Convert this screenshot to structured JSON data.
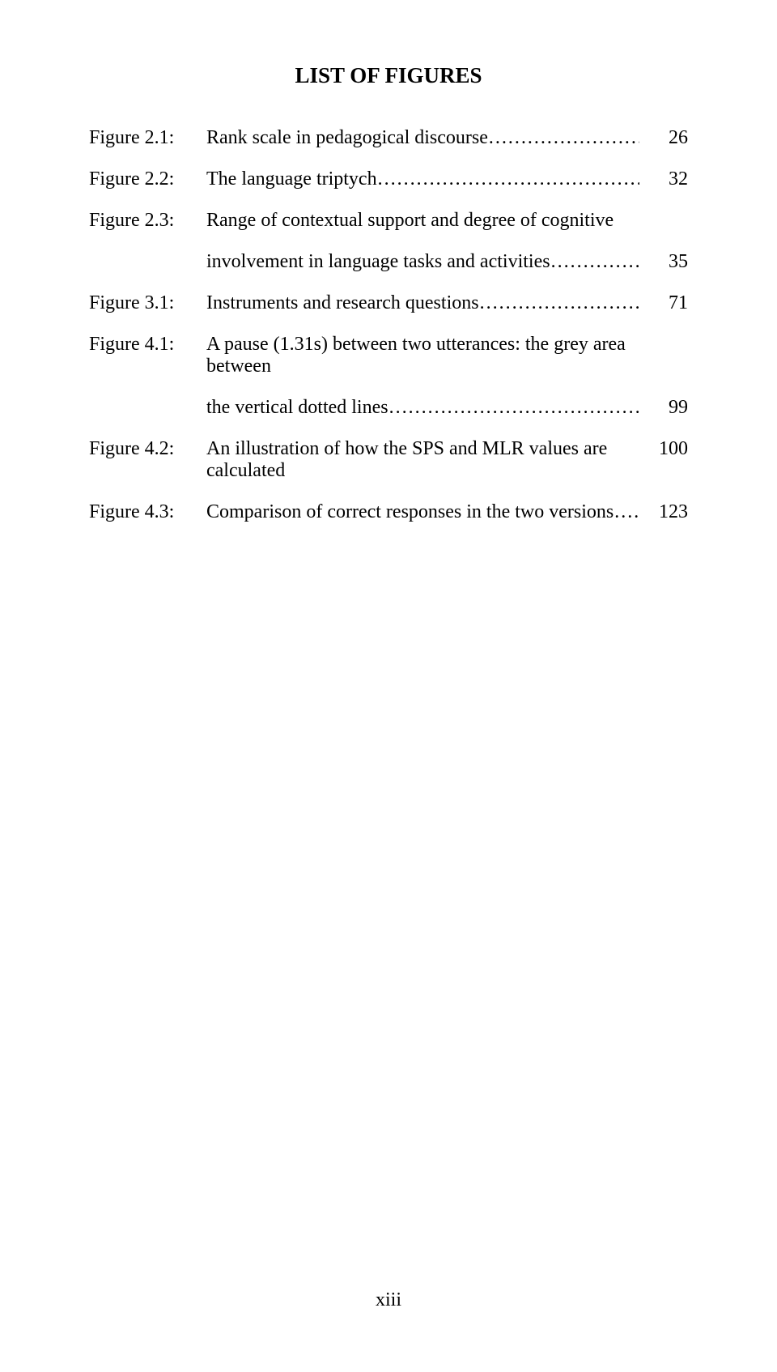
{
  "title": "LIST OF FIGURES",
  "entries": [
    {
      "label": "Figure 2.1:",
      "desc": "Rank scale in pedagogical discourse",
      "page": "26",
      "suffix": ".."
    },
    {
      "label": "Figure 2.2:",
      "desc": "The language triptych",
      "page": "32",
      "suffix": ".."
    },
    {
      "label": "Figure 2.3:",
      "desc": "Range of contextual support and degree of cognitive",
      "page": "",
      "nodots": true
    },
    {
      "label": "",
      "desc": "involvement in language tasks and activities",
      "page": "35",
      "suffix": ".."
    },
    {
      "label": "Figure 3.1:",
      "desc": "Instruments and research questions",
      "page": "71",
      "suffix": "…."
    },
    {
      "label": "Figure 4.1:",
      "desc": "A pause (1.31s) between two utterances: the grey area between",
      "page": "",
      "nodots": true
    },
    {
      "label": "",
      "desc": "the vertical dotted lines",
      "page": "99",
      "suffix": "……"
    },
    {
      "label": "Figure 4.2:",
      "desc": "An illustration of how the SPS and MLR values are calculated",
      "page": "100",
      "nodots": true,
      "gap": true
    },
    {
      "label": "Figure 4.3:",
      "desc": "Comparison of correct responses in the two versions",
      "page": "123",
      "suffix": "………."
    }
  ],
  "pageNumber": "xiii",
  "colors": {
    "background": "#ffffff",
    "text": "#000000"
  },
  "typography": {
    "title_fontsize": 27,
    "body_fontsize": 24,
    "font_family": "Times New Roman"
  }
}
